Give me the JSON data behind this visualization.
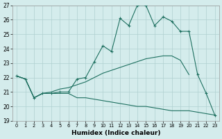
{
  "xlabel": "Humidex (Indice chaleur)",
  "xlim_min": -0.5,
  "xlim_max": 23.5,
  "ylim_min": 19,
  "ylim_max": 27,
  "yticks": [
    19,
    20,
    21,
    22,
    23,
    24,
    25,
    26,
    27
  ],
  "xticks": [
    0,
    1,
    2,
    3,
    4,
    5,
    6,
    7,
    8,
    9,
    10,
    11,
    12,
    13,
    14,
    15,
    16,
    17,
    18,
    19,
    20,
    21,
    22,
    23
  ],
  "bg_color": "#d4ecec",
  "grid_color": "#b0d0d0",
  "line_color": "#1e7060",
  "line1_x": [
    0,
    1,
    2,
    3,
    4,
    5,
    6,
    7,
    8,
    9,
    10,
    11,
    12,
    13,
    14,
    15,
    16,
    17,
    18,
    19,
    20,
    21,
    22,
    23
  ],
  "line1_y": [
    22.1,
    21.9,
    20.6,
    20.9,
    20.9,
    20.9,
    20.9,
    20.6,
    20.6,
    20.5,
    20.4,
    20.3,
    20.2,
    20.1,
    20.0,
    20.0,
    19.9,
    19.8,
    19.7,
    19.7,
    19.7,
    19.6,
    19.5,
    19.4
  ],
  "line2_x": [
    0,
    1,
    2,
    3,
    4,
    5,
    6,
    7,
    8,
    9,
    10,
    11,
    12,
    13,
    14,
    15,
    16,
    17,
    18,
    19,
    20,
    21,
    22,
    23
  ],
  "line2_y": [
    22.1,
    21.9,
    20.6,
    20.9,
    20.9,
    21.0,
    21.0,
    21.9,
    22.0,
    23.1,
    24.2,
    23.8,
    26.1,
    25.6,
    27.0,
    27.0,
    25.6,
    26.2,
    25.9,
    25.2,
    25.2,
    22.2,
    20.9,
    19.4
  ],
  "line3_x": [
    0,
    1,
    2,
    3,
    4,
    5,
    6,
    7,
    8,
    9,
    10,
    11,
    12,
    13,
    14,
    15,
    16,
    17,
    18,
    19,
    20
  ],
  "line3_y": [
    22.1,
    21.9,
    20.6,
    20.9,
    21.0,
    21.2,
    21.3,
    21.5,
    21.7,
    22.0,
    22.3,
    22.5,
    22.7,
    22.9,
    23.1,
    23.3,
    23.4,
    23.5,
    23.5,
    23.2,
    22.2
  ]
}
